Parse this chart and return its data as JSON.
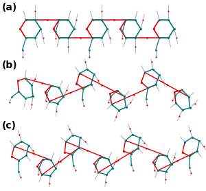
{
  "background_color": "#ffffff",
  "label_a": "(a)",
  "label_b": "(b)",
  "label_c": "(c)",
  "label_fontsize": 10,
  "label_fontweight": "bold",
  "teal": "#007878",
  "red": "#dd0000",
  "gray": "#aaaaaa",
  "dgray": "#666666",
  "black": "#000000",
  "figsize": [
    3.0,
    2.78
  ],
  "dpi": 100
}
